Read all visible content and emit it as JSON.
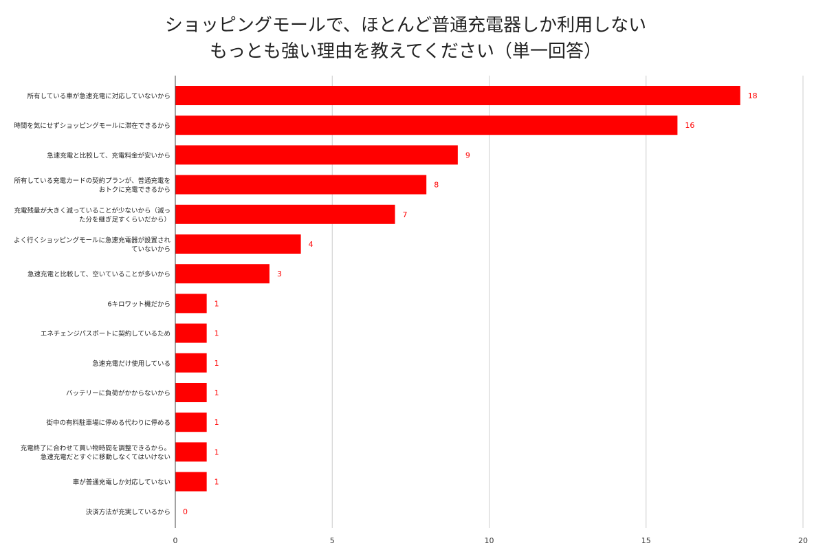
{
  "chart_data": {
    "type": "bar",
    "orientation": "horizontal",
    "title_lines": [
      "ショッピングモールで、ほとんど普通充電器しか利用しない",
      "もっとも強い理由を教えてください（単一回答）"
    ],
    "categories": [
      [
        "所有している車が急速充電に対応していないから"
      ],
      [
        "時間を気にせずショッピングモールに滞在できるから"
      ],
      [
        "急速充電と比較して、充電料金が安いから"
      ],
      [
        "所有している充電カードの契約プランが、普通充電を",
        "おトクに充電できるから"
      ],
      [
        "充電残量が大きく減っていることが少ないから（減っ",
        "た分を継ぎ足すくらいだから）"
      ],
      [
        "よく行くショッピングモールに急速充電器が設置され",
        "ていないから"
      ],
      [
        "急速充電と比較して、空いていることが多いから"
      ],
      [
        "6キロワット機だから"
      ],
      [
        "エネチェンジパスポートに契約しているため"
      ],
      [
        "急速充電だけ使用している"
      ],
      [
        "バッテリーに負荷がかからないから"
      ],
      [
        "街中の有料駐車場に停める代わりに停める"
      ],
      [
        "充電終了に合わせて買い物時間を調整できるから。",
        "急速充電だとすぐに移動しなくてはいけない"
      ],
      [
        "車が普通充電しか対応していない"
      ],
      [
        "決済方法が充実しているから"
      ]
    ],
    "values": [
      18,
      16,
      9,
      8,
      7,
      4,
      3,
      1,
      1,
      1,
      1,
      1,
      1,
      1,
      0
    ],
    "xlim": [
      0,
      20
    ],
    "x_ticks": [
      0,
      5,
      10,
      15,
      20
    ],
    "grid": true,
    "bar_color": "#ff0000",
    "label_color": "#ff0000",
    "grid_color": "#cccccc",
    "axis_color": "#444444"
  }
}
